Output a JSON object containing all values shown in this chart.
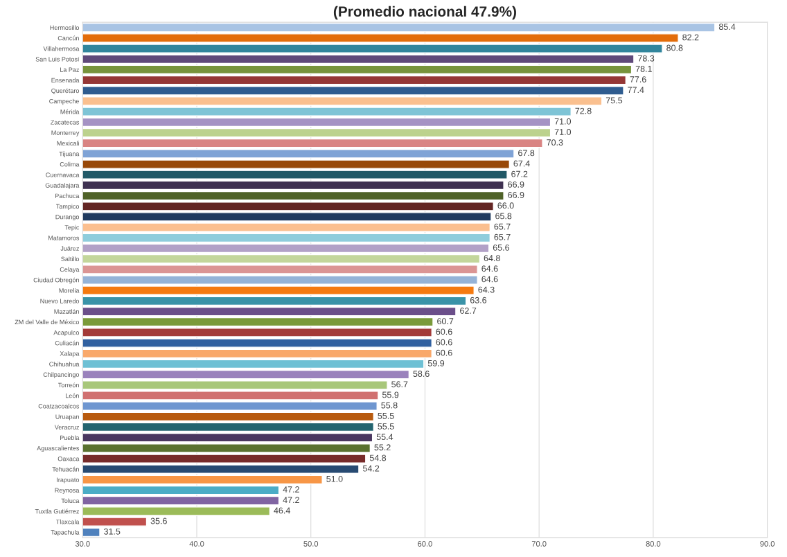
{
  "chart_data": {
    "type": "bar",
    "orientation": "horizontal",
    "title": "(Promedio nacional 47.9%)",
    "categories": [
      "Hermosillo",
      "Cancún",
      "Villahermosa",
      "San Luis Potosí",
      "La Paz",
      "Ensenada",
      "Querétaro",
      "Campeche",
      "Mérida",
      "Zacatecas",
      "Monterrey",
      "Mexicali",
      "Tijuana",
      "Colima",
      "Cuernavaca",
      "Guadalajara",
      "Pachuca",
      "Tampico",
      "Durango",
      "Tepic",
      "Matamoros",
      "Juárez",
      "Saltillo",
      "Celaya",
      "Ciudad Obregón",
      "Morelia",
      "Nuevo Laredo",
      "Mazatlán",
      "ZM del Valle de México",
      "Acapulco",
      "Culiacán",
      "Xalapa",
      "Chihuahua",
      "Chilpancingo",
      "Torreón",
      "León",
      "Coatzacoalcos",
      "Uruapan",
      "Veracruz",
      "Puebla",
      "Aguascalientes",
      "Oaxaca",
      "Tehuacán",
      "Irapuato",
      "Reynosa",
      "Toluca",
      "Tuxtla Gutiérrez",
      "Tlaxcala",
      "Tapachula"
    ],
    "values": [
      85.4,
      82.2,
      80.8,
      78.3,
      78.1,
      77.6,
      77.4,
      75.5,
      72.8,
      71.0,
      71.0,
      70.3,
      67.8,
      67.4,
      67.2,
      66.9,
      66.9,
      66.0,
      65.8,
      65.7,
      65.7,
      65.6,
      64.8,
      64.6,
      64.6,
      64.3,
      63.6,
      62.7,
      60.7,
      60.6,
      60.6,
      60.6,
      59.9,
      58.6,
      56.7,
      55.9,
      55.8,
      55.5,
      55.5,
      55.4,
      55.2,
      54.8,
      54.2,
      51.0,
      47.2,
      47.2,
      46.4,
      35.6,
      31.5
    ],
    "colors": [
      "#a9c4e4",
      "#e36c0a",
      "#31859c",
      "#5f497a",
      "#77933c",
      "#953735",
      "#2f5c8f",
      "#fac08f",
      "#7ec4d6",
      "#a593c4",
      "#bcd28d",
      "#d98483",
      "#7fa3d6",
      "#984807",
      "#215967",
      "#3f3151",
      "#4f6228",
      "#632523",
      "#1f3a5f",
      "#fbbf8f",
      "#8fcddc",
      "#b2a1c7",
      "#c3d69b",
      "#db9594",
      "#95b3d7",
      "#f57a10",
      "#3a93a8",
      "#6b4f8a",
      "#7a9a3a",
      "#a33a38",
      "#3060a0",
      "#f9a86a",
      "#6ec0d4",
      "#9a82bc",
      "#a8c77a",
      "#d07070",
      "#6e96d0",
      "#b85a0e",
      "#23646f",
      "#4a3760",
      "#5a7230",
      "#772b2a",
      "#274a72",
      "#f79646",
      "#4bacc6",
      "#8064a2",
      "#9bbb59",
      "#c0504d",
      "#4f81bd"
    ],
    "xlim": [
      30,
      90
    ],
    "xticks": [
      {
        "value": 30,
        "label": "30.0"
      },
      {
        "value": 40,
        "label": "40.0"
      },
      {
        "value": 50,
        "label": "50.0"
      },
      {
        "value": 60,
        "label": "60.0"
      },
      {
        "value": 70,
        "label": "70.0"
      },
      {
        "value": 80,
        "label": "80.0"
      },
      {
        "value": 90,
        "label": "90.0"
      }
    ],
    "value_labels": [
      "85.4",
      "82.2",
      "80.8",
      "78.3",
      "78.1",
      "77.6",
      "77.4",
      "75.5",
      "72.8",
      "71.0",
      "71.0",
      "70.3",
      "67.8",
      "67.4",
      "67.2",
      "66.9",
      "66.9",
      "66.0",
      "65.8",
      "65.7",
      "65.7",
      "65.6",
      "64.8",
      "64.6",
      "64.6",
      "64.3",
      "63.6",
      "62.7",
      "60.7",
      "60.6",
      "60.6",
      "60.6",
      "59.9",
      "58.6",
      "56.7",
      "55.9",
      "55.8",
      "55.5",
      "55.5",
      "55.4",
      "55.2",
      "54.8",
      "54.2",
      "51.0",
      "47.2",
      "47.2",
      "46.4",
      "35.6",
      "31.5"
    ],
    "grid": "x"
  }
}
